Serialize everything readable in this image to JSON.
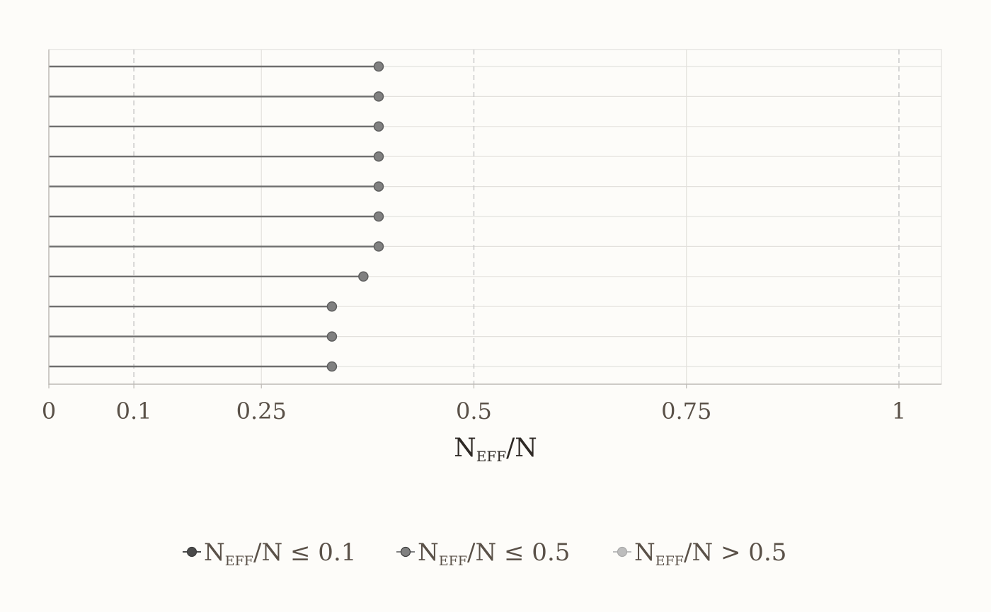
{
  "chart_data": {
    "type": "lollipop",
    "xlabel": {
      "main": "N",
      "sub": "EFF",
      "rest": "/N"
    },
    "xlim": [
      0,
      1.05
    ],
    "x_ticks": [
      0,
      0.1,
      0.25,
      0.5,
      0.75,
      1
    ],
    "x_tick_labels": [
      "0",
      "0.1",
      "0.25",
      "0.5",
      "0.75",
      "1"
    ],
    "dashed_reference_lines": [
      0.1,
      0.5,
      1
    ],
    "grid": true,
    "y_tick_labels_shown": false,
    "values": [
      0.388,
      0.388,
      0.388,
      0.388,
      0.388,
      0.388,
      0.388,
      0.37,
      0.333,
      0.333,
      0.333
    ],
    "point_category": "neff_le_0.5",
    "legend": {
      "position": "bottom",
      "items": [
        {
          "key": "neff_le_0.1",
          "main": "N",
          "sub": "EFF",
          "rest": "/N ≤ 0.1",
          "color": "#4a4a4a"
        },
        {
          "key": "neff_le_0.5",
          "main": "N",
          "sub": "EFF",
          "rest": "/N ≤ 0.5",
          "color": "#808080"
        },
        {
          "key": "neff_gt_0.5",
          "main": "N",
          "sub": "EFF",
          "rest": "/N > 0.5",
          "color": "#bdbdbd"
        }
      ]
    },
    "colors": {
      "background": "#fdfcf9",
      "grid": "#e3e1dd",
      "reference": "#c6c6c6",
      "segment": "#6e6e6e",
      "point_fill": "#808080",
      "point_stroke": "#5e5e5e",
      "axis": "#bdbab5"
    }
  }
}
